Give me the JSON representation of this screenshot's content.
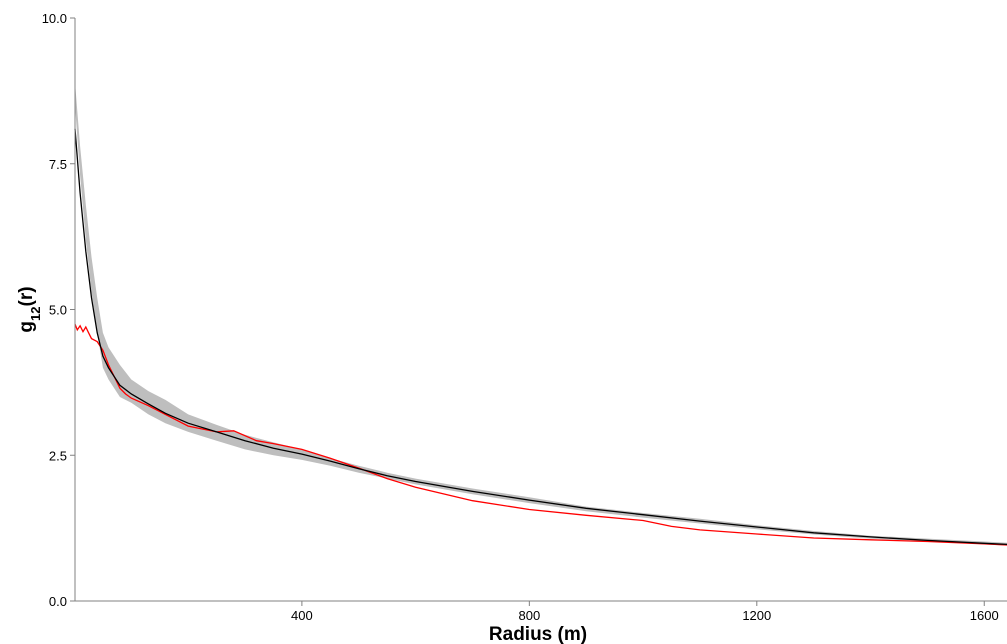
{
  "chart_data": {
    "type": "line",
    "title": "",
    "xlabel": "Radius (m)",
    "ylabel": {
      "main": "g",
      "sub": "12",
      "suffix": "(r)"
    },
    "xlim": [
      1,
      1640
    ],
    "ylim": [
      0,
      10
    ],
    "x_ticks": [
      {
        "value": 400,
        "label": "400"
      },
      {
        "value": 800,
        "label": "800"
      },
      {
        "value": 1200,
        "label": "1200"
      },
      {
        "value": 1600,
        "label": "1600"
      }
    ],
    "y_ticks": [
      {
        "value": 0,
        "label": "0.0"
      },
      {
        "value": 2.5,
        "label": "2.5"
      },
      {
        "value": 5,
        "label": "5.0"
      },
      {
        "value": 7.5,
        "label": "7.5"
      },
      {
        "value": 10,
        "label": "10.0"
      }
    ],
    "grid": false,
    "legend": "none",
    "colors": {
      "envelope": "#bebebe",
      "theoretical": "#000000",
      "observed": "#ff0000"
    },
    "envelope": {
      "x": [
        1,
        10,
        20,
        30,
        40,
        50,
        60,
        80,
        100,
        130,
        160,
        200,
        250,
        300,
        350,
        400,
        450,
        500,
        550,
        600,
        700,
        800,
        900,
        1000,
        1100,
        1200,
        1300,
        1400,
        1500,
        1600,
        1640
      ],
      "lower": [
        8.5,
        7.3,
        6.2,
        5.3,
        4.6,
        4.0,
        3.8,
        3.5,
        3.4,
        3.2,
        3.05,
        2.9,
        2.75,
        2.6,
        2.5,
        2.42,
        2.32,
        2.2,
        2.1,
        2.0,
        1.83,
        1.68,
        1.54,
        1.43,
        1.33,
        1.23,
        1.14,
        1.07,
        1.02,
        0.97,
        0.95
      ],
      "upper": [
        8.9,
        7.8,
        6.8,
        5.9,
        5.2,
        4.6,
        4.35,
        4.05,
        3.8,
        3.6,
        3.45,
        3.2,
        3.02,
        2.85,
        2.72,
        2.6,
        2.45,
        2.32,
        2.2,
        2.1,
        1.93,
        1.78,
        1.62,
        1.51,
        1.41,
        1.3,
        1.2,
        1.12,
        1.07,
        1.02,
        1.0
      ]
    },
    "series": [
      {
        "x": [
          1,
          10,
          20,
          30,
          40,
          50,
          60,
          80,
          100,
          130,
          160,
          200,
          250,
          300,
          350,
          400,
          450,
          500,
          550,
          600,
          700,
          800,
          900,
          1000,
          1100,
          1200,
          1300,
          1400,
          1500,
          1600,
          1640
        ],
        "values": [
          8.1,
          7.0,
          6.0,
          5.2,
          4.6,
          4.2,
          4.0,
          3.7,
          3.55,
          3.38,
          3.22,
          3.05,
          2.9,
          2.75,
          2.62,
          2.52,
          2.4,
          2.27,
          2.15,
          2.05,
          1.88,
          1.73,
          1.59,
          1.48,
          1.37,
          1.27,
          1.17,
          1.1,
          1.04,
          0.99,
          0.97
        ]
      },
      {
        "x": [
          1,
          5,
          10,
          15,
          20,
          25,
          30,
          40,
          50,
          60,
          70,
          80,
          90,
          100,
          130,
          160,
          200,
          250,
          280,
          320,
          350,
          400,
          450,
          500,
          550,
          600,
          700,
          800,
          900,
          1000,
          1050,
          1100,
          1200,
          1300,
          1400,
          1500,
          1600,
          1640
        ],
        "values": [
          4.75,
          4.65,
          4.72,
          4.62,
          4.7,
          4.6,
          4.5,
          4.45,
          4.3,
          4.05,
          3.85,
          3.65,
          3.55,
          3.48,
          3.35,
          3.2,
          3.0,
          2.9,
          2.92,
          2.75,
          2.7,
          2.6,
          2.45,
          2.28,
          2.1,
          1.95,
          1.72,
          1.57,
          1.47,
          1.38,
          1.28,
          1.22,
          1.15,
          1.08,
          1.05,
          1.02,
          0.98,
          0.96
        ]
      }
    ]
  }
}
